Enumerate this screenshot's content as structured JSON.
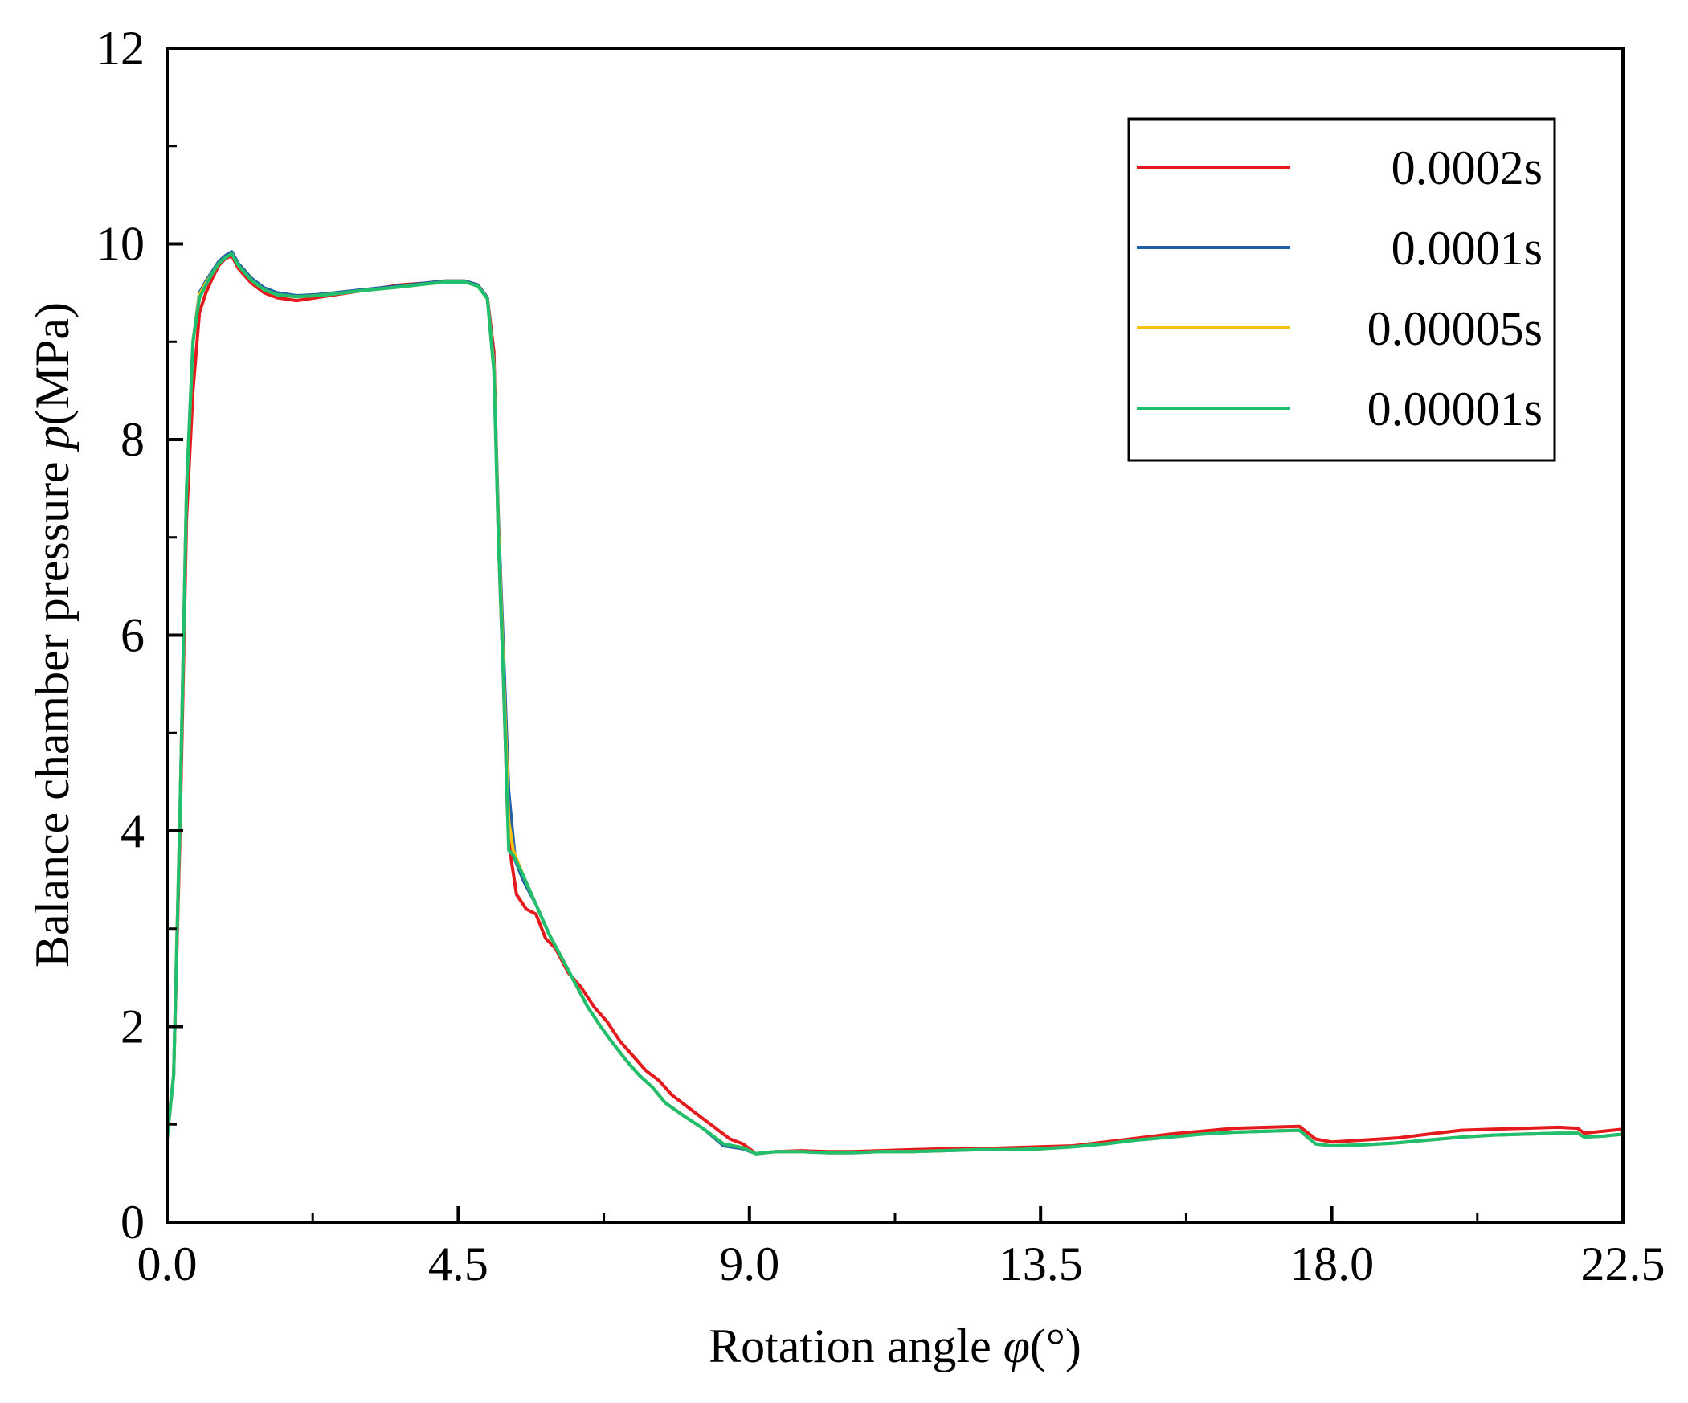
{
  "chart_data": {
    "type": "line",
    "xlabel_main": "Rotation angle ",
    "xlabel_var": "φ",
    "xlabel_unit": "(°)",
    "ylabel_main": "Balance chamber pressure ",
    "ylabel_var": "p",
    "ylabel_unit": "(MPa)",
    "xlim": [
      0,
      22.5
    ],
    "ylim": [
      0,
      12
    ],
    "x_ticks": [
      "0.0",
      "4.5",
      "9.0",
      "13.5",
      "18.0",
      "22.5"
    ],
    "y_ticks": [
      "0",
      "2",
      "4",
      "6",
      "8",
      "10",
      "12"
    ],
    "grid": false,
    "legend_position": "top-right",
    "series": [
      {
        "name": "0.0002s",
        "color": "#e41a1c",
        "points": [
          [
            0,
            0.9
          ],
          [
            0.1,
            1.5
          ],
          [
            0.2,
            4
          ],
          [
            0.3,
            7.2
          ],
          [
            0.4,
            8.5
          ],
          [
            0.5,
            9.3
          ],
          [
            0.6,
            9.5
          ],
          [
            0.7,
            9.65
          ],
          [
            0.8,
            9.78
          ],
          [
            0.9,
            9.85
          ],
          [
            1.0,
            9.88
          ],
          [
            1.1,
            9.75
          ],
          [
            1.3,
            9.6
          ],
          [
            1.5,
            9.5
          ],
          [
            1.7,
            9.45
          ],
          [
            2.0,
            9.42
          ],
          [
            2.3,
            9.45
          ],
          [
            2.6,
            9.48
          ],
          [
            3.0,
            9.52
          ],
          [
            3.3,
            9.55
          ],
          [
            3.6,
            9.58
          ],
          [
            4.0,
            9.6
          ],
          [
            4.3,
            9.62
          ],
          [
            4.6,
            9.62
          ],
          [
            4.8,
            9.58
          ],
          [
            4.95,
            9.45
          ],
          [
            5.05,
            8.9
          ],
          [
            5.12,
            7.0
          ],
          [
            5.2,
            5.5
          ],
          [
            5.26,
            4.2
          ],
          [
            5.32,
            3.7
          ],
          [
            5.4,
            3.35
          ],
          [
            5.55,
            3.2
          ],
          [
            5.7,
            3.15
          ],
          [
            5.85,
            2.9
          ],
          [
            6.0,
            2.8
          ],
          [
            6.2,
            2.55
          ],
          [
            6.4,
            2.4
          ],
          [
            6.6,
            2.2
          ],
          [
            6.8,
            2.05
          ],
          [
            7.0,
            1.85
          ],
          [
            7.2,
            1.7
          ],
          [
            7.4,
            1.55
          ],
          [
            7.6,
            1.45
          ],
          [
            7.8,
            1.3
          ],
          [
            8.0,
            1.2
          ],
          [
            8.3,
            1.05
          ],
          [
            8.5,
            0.95
          ],
          [
            8.7,
            0.85
          ],
          [
            8.9,
            0.8
          ],
          [
            9.1,
            0.7
          ],
          [
            9.4,
            0.72
          ],
          [
            9.8,
            0.73
          ],
          [
            10.2,
            0.72
          ],
          [
            10.6,
            0.72
          ],
          [
            11.0,
            0.73
          ],
          [
            11.5,
            0.74
          ],
          [
            12.0,
            0.75
          ],
          [
            12.5,
            0.75
          ],
          [
            13.0,
            0.76
          ],
          [
            13.5,
            0.77
          ],
          [
            14.0,
            0.78
          ],
          [
            14.5,
            0.82
          ],
          [
            15.0,
            0.86
          ],
          [
            15.5,
            0.9
          ],
          [
            16.0,
            0.93
          ],
          [
            16.5,
            0.96
          ],
          [
            17.0,
            0.97
          ],
          [
            17.5,
            0.98
          ],
          [
            17.75,
            0.85
          ],
          [
            18.0,
            0.82
          ],
          [
            18.5,
            0.84
          ],
          [
            19.0,
            0.86
          ],
          [
            19.5,
            0.9
          ],
          [
            20.0,
            0.94
          ],
          [
            20.5,
            0.95
          ],
          [
            21.0,
            0.96
          ],
          [
            21.5,
            0.97
          ],
          [
            21.8,
            0.96
          ],
          [
            21.9,
            0.91
          ],
          [
            22.2,
            0.93
          ],
          [
            22.5,
            0.95
          ]
        ]
      },
      {
        "name": "0.0001s",
        "color": "#1f5fa6",
        "points": [
          [
            0,
            0.85
          ],
          [
            0.1,
            1.5
          ],
          [
            0.2,
            4.2
          ],
          [
            0.3,
            7.5
          ],
          [
            0.4,
            9.0
          ],
          [
            0.5,
            9.5
          ],
          [
            0.6,
            9.62
          ],
          [
            0.7,
            9.72
          ],
          [
            0.8,
            9.82
          ],
          [
            0.9,
            9.88
          ],
          [
            1.0,
            9.92
          ],
          [
            1.1,
            9.8
          ],
          [
            1.3,
            9.65
          ],
          [
            1.5,
            9.55
          ],
          [
            1.7,
            9.5
          ],
          [
            2.0,
            9.47
          ],
          [
            2.3,
            9.48
          ],
          [
            2.6,
            9.5
          ],
          [
            3.0,
            9.53
          ],
          [
            3.3,
            9.55
          ],
          [
            3.6,
            9.57
          ],
          [
            4.0,
            9.6
          ],
          [
            4.3,
            9.62
          ],
          [
            4.6,
            9.62
          ],
          [
            4.8,
            9.58
          ],
          [
            4.95,
            9.45
          ],
          [
            5.05,
            8.8
          ],
          [
            5.12,
            7.2
          ],
          [
            5.2,
            5.8
          ],
          [
            5.28,
            4.4
          ],
          [
            5.38,
            3.7
          ],
          [
            5.5,
            3.5
          ],
          [
            5.7,
            3.25
          ],
          [
            5.9,
            2.95
          ],
          [
            6.1,
            2.7
          ],
          [
            6.3,
            2.45
          ],
          [
            6.5,
            2.2
          ],
          [
            6.7,
            2.0
          ],
          [
            6.9,
            1.82
          ],
          [
            7.1,
            1.65
          ],
          [
            7.3,
            1.5
          ],
          [
            7.5,
            1.38
          ],
          [
            7.7,
            1.22
          ],
          [
            8.0,
            1.08
          ],
          [
            8.3,
            0.95
          ],
          [
            8.6,
            0.78
          ],
          [
            8.9,
            0.75
          ],
          [
            9.1,
            0.7
          ],
          [
            9.4,
            0.72
          ],
          [
            9.8,
            0.72
          ],
          [
            10.2,
            0.71
          ],
          [
            10.6,
            0.71
          ],
          [
            11.0,
            0.72
          ],
          [
            11.5,
            0.72
          ],
          [
            12.0,
            0.73
          ],
          [
            12.5,
            0.74
          ],
          [
            13.0,
            0.74
          ],
          [
            13.5,
            0.75
          ],
          [
            14.0,
            0.77
          ],
          [
            14.5,
            0.8
          ],
          [
            15.0,
            0.84
          ],
          [
            15.5,
            0.87
          ],
          [
            16.0,
            0.9
          ],
          [
            16.5,
            0.92
          ],
          [
            17.0,
            0.93
          ],
          [
            17.5,
            0.94
          ],
          [
            17.75,
            0.8
          ],
          [
            18.0,
            0.78
          ],
          [
            18.5,
            0.79
          ],
          [
            19.0,
            0.81
          ],
          [
            19.5,
            0.84
          ],
          [
            20.0,
            0.87
          ],
          [
            20.5,
            0.89
          ],
          [
            21.0,
            0.9
          ],
          [
            21.5,
            0.91
          ],
          [
            21.8,
            0.91
          ],
          [
            21.9,
            0.87
          ],
          [
            22.2,
            0.88
          ],
          [
            22.5,
            0.9
          ]
        ]
      },
      {
        "name": "0.00005s",
        "color": "#f5c211",
        "points": [
          [
            0,
            0.85
          ],
          [
            0.1,
            1.5
          ],
          [
            0.2,
            4.2
          ],
          [
            0.3,
            7.5
          ],
          [
            0.4,
            9.0
          ],
          [
            0.5,
            9.48
          ],
          [
            0.6,
            9.6
          ],
          [
            0.7,
            9.7
          ],
          [
            0.8,
            9.8
          ],
          [
            0.9,
            9.86
          ],
          [
            1.0,
            9.9
          ],
          [
            1.1,
            9.78
          ],
          [
            1.3,
            9.63
          ],
          [
            1.5,
            9.53
          ],
          [
            1.7,
            9.48
          ],
          [
            2.0,
            9.46
          ],
          [
            2.3,
            9.47
          ],
          [
            2.6,
            9.49
          ],
          [
            3.0,
            9.52
          ],
          [
            3.3,
            9.54
          ],
          [
            3.6,
            9.56
          ],
          [
            4.0,
            9.59
          ],
          [
            4.3,
            9.61
          ],
          [
            4.6,
            9.61
          ],
          [
            4.8,
            9.57
          ],
          [
            4.95,
            9.44
          ],
          [
            5.05,
            8.75
          ],
          [
            5.12,
            7.1
          ],
          [
            5.2,
            5.6
          ],
          [
            5.28,
            4.1
          ],
          [
            5.35,
            3.8
          ],
          [
            5.5,
            3.55
          ],
          [
            5.7,
            3.25
          ],
          [
            5.9,
            2.95
          ],
          [
            6.1,
            2.7
          ],
          [
            6.3,
            2.45
          ],
          [
            6.5,
            2.2
          ],
          [
            6.7,
            2.0
          ],
          [
            6.9,
            1.82
          ],
          [
            7.1,
            1.65
          ],
          [
            7.3,
            1.5
          ],
          [
            7.5,
            1.38
          ],
          [
            7.7,
            1.22
          ],
          [
            8.0,
            1.08
          ],
          [
            8.3,
            0.95
          ],
          [
            8.6,
            0.8
          ],
          [
            8.9,
            0.76
          ],
          [
            9.1,
            0.7
          ],
          [
            9.4,
            0.72
          ],
          [
            9.8,
            0.72
          ],
          [
            10.2,
            0.71
          ],
          [
            10.6,
            0.71
          ],
          [
            11.0,
            0.72
          ],
          [
            11.5,
            0.72
          ],
          [
            12.0,
            0.73
          ],
          [
            12.5,
            0.74
          ],
          [
            13.0,
            0.74
          ],
          [
            13.5,
            0.75
          ],
          [
            14.0,
            0.77
          ],
          [
            14.5,
            0.8
          ],
          [
            15.0,
            0.84
          ],
          [
            15.5,
            0.87
          ],
          [
            16.0,
            0.9
          ],
          [
            16.5,
            0.92
          ],
          [
            17.0,
            0.93
          ],
          [
            17.5,
            0.94
          ],
          [
            17.75,
            0.8
          ],
          [
            18.0,
            0.78
          ],
          [
            18.5,
            0.79
          ],
          [
            19.0,
            0.81
          ],
          [
            19.5,
            0.84
          ],
          [
            20.0,
            0.87
          ],
          [
            20.5,
            0.89
          ],
          [
            21.0,
            0.9
          ],
          [
            21.5,
            0.91
          ],
          [
            21.8,
            0.91
          ],
          [
            21.9,
            0.87
          ],
          [
            22.2,
            0.88
          ],
          [
            22.5,
            0.9
          ]
        ]
      },
      {
        "name": "0.00001s",
        "color": "#1fbf6e",
        "points": [
          [
            0,
            0.85
          ],
          [
            0.1,
            1.5
          ],
          [
            0.2,
            4.2
          ],
          [
            0.3,
            7.5
          ],
          [
            0.4,
            9.0
          ],
          [
            0.5,
            9.45
          ],
          [
            0.6,
            9.58
          ],
          [
            0.7,
            9.7
          ],
          [
            0.8,
            9.8
          ],
          [
            0.9,
            9.86
          ],
          [
            1.0,
            9.9
          ],
          [
            1.1,
            9.78
          ],
          [
            1.3,
            9.63
          ],
          [
            1.5,
            9.53
          ],
          [
            1.7,
            9.48
          ],
          [
            2.0,
            9.46
          ],
          [
            2.3,
            9.47
          ],
          [
            2.6,
            9.49
          ],
          [
            3.0,
            9.52
          ],
          [
            3.3,
            9.54
          ],
          [
            3.6,
            9.56
          ],
          [
            4.0,
            9.59
          ],
          [
            4.3,
            9.61
          ],
          [
            4.6,
            9.61
          ],
          [
            4.8,
            9.57
          ],
          [
            4.95,
            9.44
          ],
          [
            5.05,
            8.7
          ],
          [
            5.12,
            7.0
          ],
          [
            5.2,
            5.5
          ],
          [
            5.28,
            3.8
          ],
          [
            5.35,
            3.75
          ],
          [
            5.5,
            3.55
          ],
          [
            5.7,
            3.25
          ],
          [
            5.9,
            2.95
          ],
          [
            6.1,
            2.7
          ],
          [
            6.3,
            2.45
          ],
          [
            6.5,
            2.2
          ],
          [
            6.7,
            2.0
          ],
          [
            6.9,
            1.82
          ],
          [
            7.1,
            1.65
          ],
          [
            7.3,
            1.5
          ],
          [
            7.5,
            1.38
          ],
          [
            7.7,
            1.22
          ],
          [
            8.0,
            1.08
          ],
          [
            8.3,
            0.95
          ],
          [
            8.6,
            0.8
          ],
          [
            8.9,
            0.76
          ],
          [
            9.1,
            0.7
          ],
          [
            9.4,
            0.72
          ],
          [
            9.8,
            0.72
          ],
          [
            10.2,
            0.71
          ],
          [
            10.6,
            0.71
          ],
          [
            11.0,
            0.72
          ],
          [
            11.5,
            0.72
          ],
          [
            12.0,
            0.73
          ],
          [
            12.5,
            0.74
          ],
          [
            13.0,
            0.74
          ],
          [
            13.5,
            0.75
          ],
          [
            14.0,
            0.77
          ],
          [
            14.5,
            0.8
          ],
          [
            15.0,
            0.84
          ],
          [
            15.5,
            0.87
          ],
          [
            16.0,
            0.9
          ],
          [
            16.5,
            0.92
          ],
          [
            17.0,
            0.93
          ],
          [
            17.5,
            0.94
          ],
          [
            17.75,
            0.8
          ],
          [
            18.0,
            0.78
          ],
          [
            18.5,
            0.79
          ],
          [
            19.0,
            0.81
          ],
          [
            19.5,
            0.84
          ],
          [
            20.0,
            0.87
          ],
          [
            20.5,
            0.89
          ],
          [
            21.0,
            0.9
          ],
          [
            21.5,
            0.91
          ],
          [
            21.8,
            0.91
          ],
          [
            21.9,
            0.87
          ],
          [
            22.2,
            0.88
          ],
          [
            22.5,
            0.9
          ]
        ]
      }
    ]
  }
}
